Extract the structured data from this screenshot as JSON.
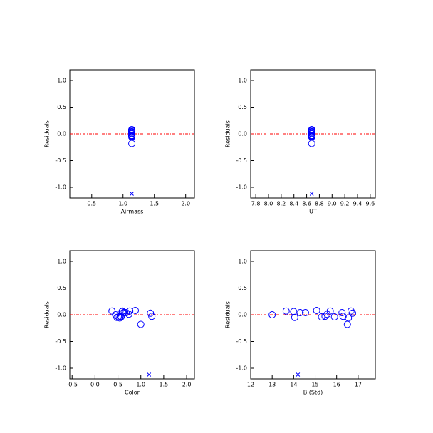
{
  "chart_data": [
    {
      "type": "scatter",
      "xlabel": "Airmass",
      "ylabel": "Residuals",
      "xlim": [
        0.15,
        2.14
      ],
      "xticks": [
        0.5,
        {
          "value": 1.0,
          "label": "1.0"
        },
        1.5,
        {
          "value": 2.0,
          "label": "2.0"
        }
      ],
      "ylim": [
        -1.2,
        1.2
      ],
      "yticks": [
        {
          "value": -1.0,
          "label": "-1.0"
        },
        -0.5,
        {
          "value": 0.0,
          "label": "0.0"
        },
        0.5,
        {
          "value": 1.0,
          "label": "1.0"
        }
      ],
      "reference_line": {
        "value": 0,
        "color": "#ff0000"
      },
      "series": [
        {
          "marker": "circle",
          "color": "#0000ff",
          "x": [
            1.14,
            1.14,
            1.14,
            1.14,
            1.14,
            1.14,
            1.14,
            1.14,
            1.14,
            1.14,
            1.14,
            1.14,
            1.14,
            1.14,
            1.14,
            1.14,
            1.14,
            1.14
          ],
          "values": [
            0.0,
            0.07,
            0.06,
            -0.05,
            0.04,
            0.04,
            0.08,
            -0.04,
            -0.03,
            0.01,
            0.07,
            -0.04,
            0.04,
            -0.03,
            -0.18,
            -0.06,
            0.07,
            0.03
          ]
        },
        {
          "marker": "cross",
          "color": "#0000ff",
          "x": [
            1.14
          ],
          "values": [
            -1.12
          ]
        }
      ]
    },
    {
      "type": "scatter",
      "xlabel": "UT",
      "ylabel": "Residuals",
      "xlim": [
        7.72,
        9.68
      ],
      "xticks": [
        7.8,
        {
          "value": 8.0,
          "label": "8.0"
        },
        8.2,
        8.4,
        8.6,
        8.8,
        {
          "value": 9.0,
          "label": "9.0"
        },
        9.2,
        9.4,
        9.6
      ],
      "ylim": [
        -1.2,
        1.2
      ],
      "yticks": [
        {
          "value": -1.0,
          "label": "-1.0"
        },
        -0.5,
        {
          "value": 0.0,
          "label": "0.0"
        },
        0.5,
        {
          "value": 1.0,
          "label": "1.0"
        }
      ],
      "reference_line": {
        "value": 0,
        "color": "#ff0000"
      },
      "series": [
        {
          "marker": "circle",
          "color": "#0000ff",
          "x": [
            8.68,
            8.68,
            8.68,
            8.68,
            8.68,
            8.68,
            8.68,
            8.68,
            8.68,
            8.68,
            8.68,
            8.68,
            8.68,
            8.68,
            8.68,
            8.68,
            8.68,
            8.68
          ],
          "values": [
            0.0,
            0.07,
            0.06,
            -0.05,
            0.04,
            0.04,
            0.08,
            -0.04,
            -0.03,
            0.01,
            0.07,
            -0.04,
            0.04,
            -0.03,
            -0.18,
            -0.06,
            0.07,
            0.03
          ]
        },
        {
          "marker": "cross",
          "color": "#0000ff",
          "x": [
            8.68
          ],
          "values": [
            -1.12
          ]
        }
      ]
    },
    {
      "type": "scatter",
      "xlabel": "Color",
      "ylabel": "Residuals",
      "xlim": [
        -0.55,
        2.17
      ],
      "xticks": [
        -0.5,
        {
          "value": 0.0,
          "label": "0.0"
        },
        0.5,
        {
          "value": 1.0,
          "label": "1.0"
        },
        1.5,
        {
          "value": 2.0,
          "label": "2.0"
        }
      ],
      "ylim": [
        -1.2,
        1.2
      ],
      "yticks": [
        {
          "value": -1.0,
          "label": "-1.0"
        },
        -0.5,
        {
          "value": 0.0,
          "label": "0.0"
        },
        0.5,
        {
          "value": 1.0,
          "label": "1.0"
        }
      ],
      "reference_line": {
        "value": 0,
        "color": "#ff0000"
      },
      "series": [
        {
          "marker": "circle",
          "color": "#0000ff",
          "x": [
            0.45,
            0.37,
            0.59,
            0.48,
            0.62,
            0.68,
            0.88,
            0.51,
            0.55,
            0.74,
            0.6,
            0.57,
            0.65,
            1.24,
            1.0,
            0.54,
            0.76,
            1.21
          ],
          "values": [
            0.0,
            0.07,
            0.06,
            -0.05,
            0.04,
            0.04,
            0.08,
            -0.04,
            -0.03,
            0.01,
            0.07,
            -0.04,
            0.04,
            -0.03,
            -0.18,
            -0.06,
            0.07,
            0.03
          ]
        },
        {
          "marker": "cross",
          "color": "#0000ff",
          "x": [
            1.18
          ],
          "values": [
            -1.12
          ]
        }
      ]
    },
    {
      "type": "scatter",
      "xlabel": "B (Std)",
      "ylabel": "Residuals",
      "xlim": [
        12,
        17.8
      ],
      "xticks": [
        12,
        13,
        14,
        15,
        16,
        17
      ],
      "ylim": [
        -1.2,
        1.2
      ],
      "yticks": [
        {
          "value": -1.0,
          "label": "-1.0"
        },
        -0.5,
        {
          "value": 0.0,
          "label": "0.0"
        },
        0.5,
        {
          "value": 1.0,
          "label": "1.0"
        }
      ],
      "reference_line": {
        "value": 0,
        "color": "#ff0000"
      },
      "series": [
        {
          "marker": "circle",
          "color": "#0000ff",
          "x": [
            13.0,
            13.65,
            14.0,
            14.05,
            14.3,
            14.55,
            15.07,
            15.3,
            15.46,
            15.56,
            15.7,
            15.9,
            16.25,
            16.3,
            16.5,
            16.55,
            16.67,
            16.74
          ],
          "values": [
            0.0,
            0.07,
            0.06,
            -0.05,
            0.04,
            0.04,
            0.08,
            -0.04,
            -0.03,
            0.01,
            0.07,
            -0.04,
            0.04,
            -0.03,
            -0.18,
            -0.06,
            0.07,
            0.03
          ]
        },
        {
          "marker": "cross",
          "color": "#0000ff",
          "x": [
            14.2
          ],
          "values": [
            -1.12
          ]
        }
      ]
    }
  ]
}
